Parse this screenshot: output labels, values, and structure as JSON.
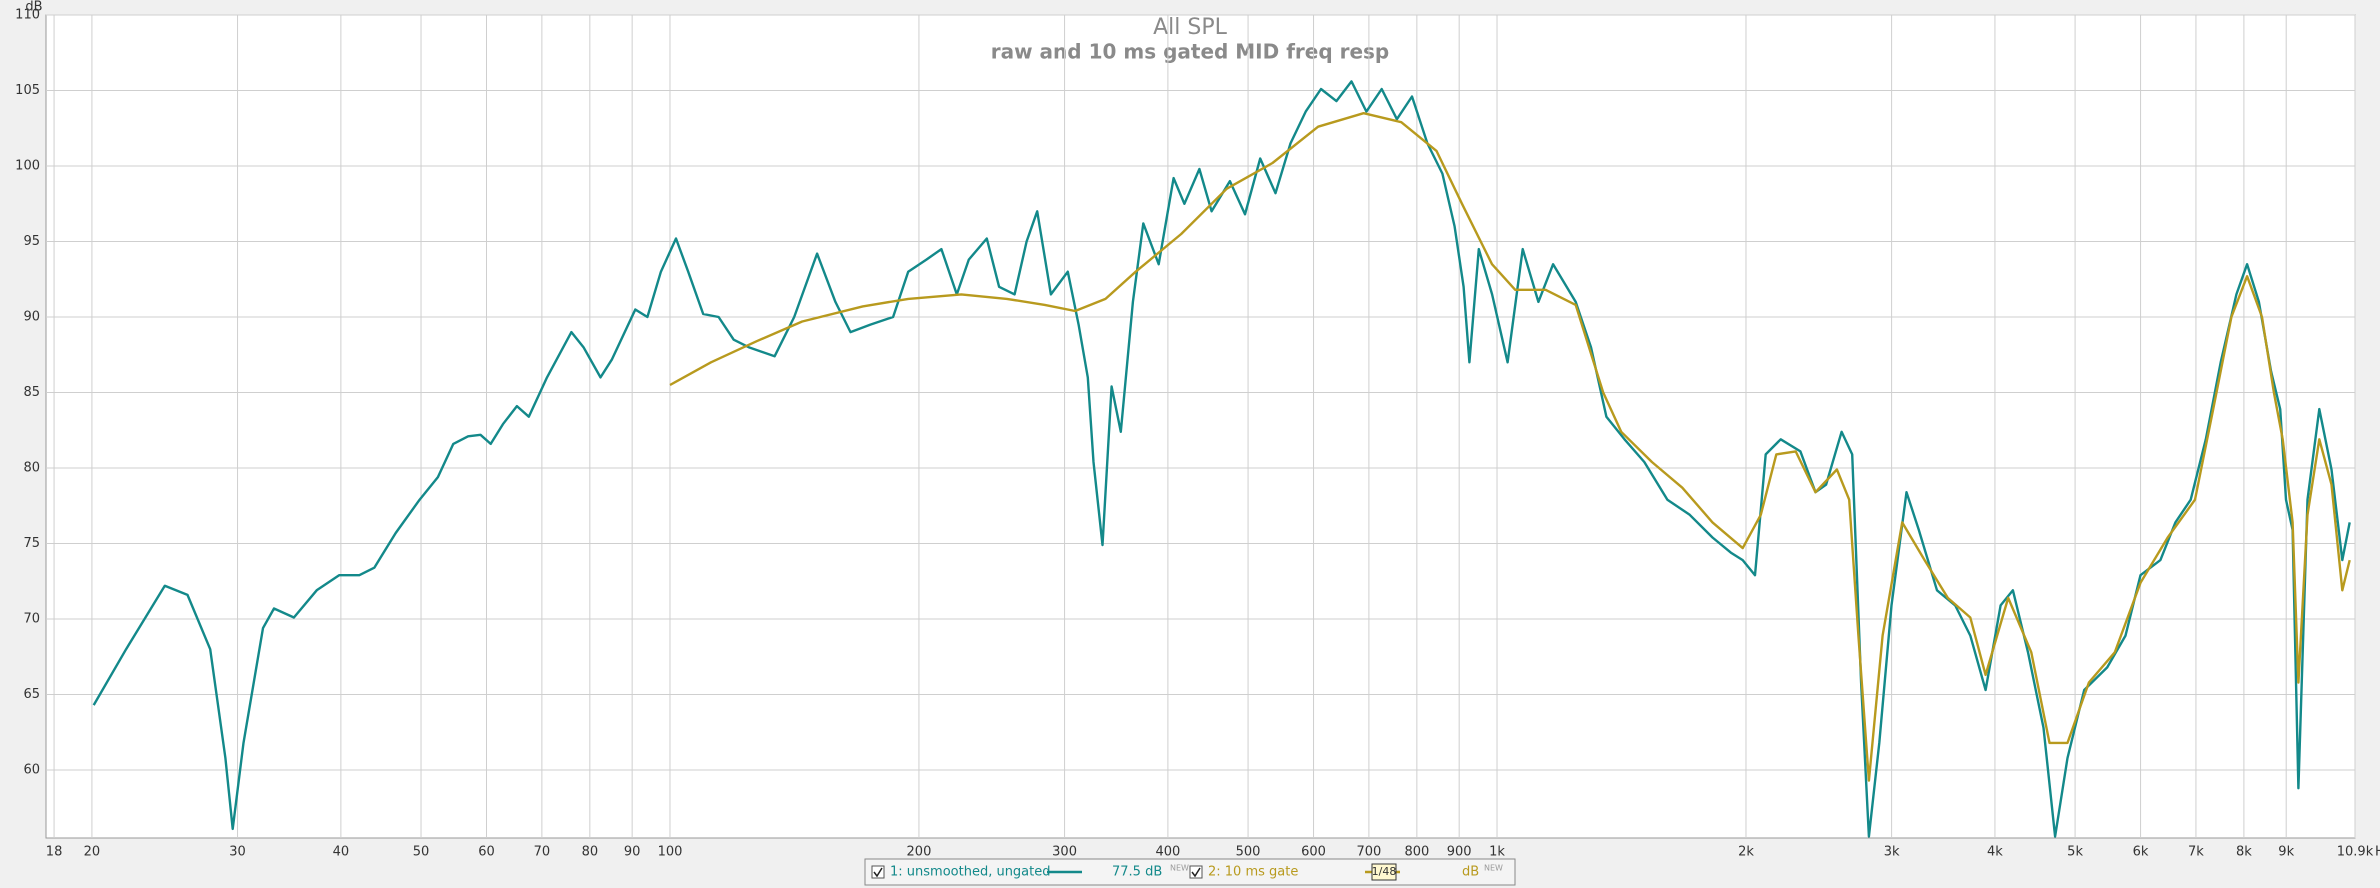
{
  "chart_data": {
    "type": "line",
    "title": "All SPL",
    "subtitle": "raw and 10 ms gated MID freq resp",
    "y_label": "dB",
    "x_unit": "Hz",
    "log_x": true,
    "grid": true,
    "xlim": [
      17.6,
      10900
    ],
    "ylim": [
      55.5,
      110
    ],
    "xticks": [
      18,
      20,
      30,
      40,
      50,
      60,
      70,
      80,
      90,
      100,
      200,
      300,
      400,
      500,
      600,
      700,
      800,
      900,
      {
        "value": 1000,
        "label": "1k"
      },
      {
        "value": 2000,
        "label": "2k"
      },
      {
        "value": 3000,
        "label": "3k"
      },
      {
        "value": 4000,
        "label": "4k"
      },
      {
        "value": 5000,
        "label": "5k"
      },
      {
        "value": 6000,
        "label": "6k"
      },
      {
        "value": 7000,
        "label": "7k"
      },
      {
        "value": 8000,
        "label": "8k"
      },
      {
        "value": 9000,
        "label": "9k"
      },
      {
        "value": 10900,
        "label": "10.9k"
      }
    ],
    "yticks": [
      60,
      65,
      70,
      75,
      80,
      85,
      90,
      95,
      100,
      105,
      110
    ],
    "series": [
      {
        "name": "1: unsmoothed, ungated",
        "color": "#13898a",
        "readout": "77.5 dB",
        "badge": "NEW",
        "x": [
          20.1,
          22.0,
          24.5,
          26.1,
          27.8,
          29.0,
          29.6,
          30.5,
          32.2,
          33.2,
          35.1,
          37.4,
          39.8,
          42.1,
          43.9,
          46.6,
          49.8,
          52.4,
          54.7,
          57.0,
          59.0,
          60.7,
          62.8,
          65.3,
          67.5,
          71.0,
          76.0,
          78.6,
          82.4,
          85.1,
          90.8,
          93.9,
          97.5,
          101.7,
          105.2,
          109.7,
          114.5,
          119.4,
          124.5,
          133.8,
          141.3,
          150.6,
          158.5,
          165.3,
          174.7,
          186.1,
          194.1,
          204.2,
          212.9,
          222.2,
          229.8,
          241.6,
          250.0,
          261.0,
          269.9,
          278.0,
          288.8,
          302.7,
          311.9,
          320.0,
          325.2,
          333.4,
          342.0,
          350.8,
          362.9,
          373.5,
          389.9,
          406.4,
          418.8,
          436.7,
          451.7,
          475.3,
          495.7,
          517.2,
          539.7,
          562.7,
          587.0,
          612.6,
          639.4,
          666.8,
          695.2,
          725.4,
          756.7,
          789.3,
          823.7,
          859.0,
          888.6,
          911.2,
          926.1,
          950.6,
          986.4,
          1030,
          1074,
          1122,
          1169,
          1245,
          1299,
          1356,
          1426,
          1507,
          1607,
          1710,
          1822,
          1917,
          1982,
          2051,
          2113,
          2203,
          2327,
          2427,
          2500,
          2610,
          2688,
          2756,
          2816,
          2899,
          2999,
          3127,
          3236,
          3404,
          3581,
          3735,
          3897,
          4064,
          4205,
          4386,
          4579,
          4730,
          4895,
          5129,
          5468,
          5754,
          5998,
          6340,
          6611,
          6899,
          7194,
          7499,
          7834,
          8072,
          8341,
          8630,
          8851,
          8995,
          9162,
          9311,
          9550,
          9870,
          10210,
          10520,
          10740
        ],
        "values": [
          64.3,
          68.0,
          72.2,
          71.6,
          68.0,
          60.8,
          56.1,
          61.8,
          69.4,
          70.7,
          70.1,
          71.9,
          72.9,
          72.9,
          73.4,
          75.7,
          77.9,
          79.4,
          81.6,
          82.1,
          82.2,
          81.6,
          82.9,
          84.1,
          83.4,
          86.0,
          89.0,
          88.0,
          86.0,
          87.2,
          90.5,
          90.0,
          93.0,
          95.2,
          93.0,
          90.2,
          90.0,
          88.5,
          88.0,
          87.4,
          90.0,
          94.2,
          91.0,
          89.0,
          89.5,
          90.0,
          93.0,
          93.8,
          94.5,
          91.5,
          93.8,
          95.2,
          92.0,
          91.5,
          95.0,
          97.0,
          91.5,
          93.0,
          89.5,
          86.0,
          80.4,
          74.9,
          85.4,
          82.4,
          91.0,
          96.2,
          93.5,
          99.2,
          97.5,
          99.8,
          97.0,
          99.0,
          96.8,
          100.5,
          98.2,
          101.5,
          103.6,
          105.1,
          104.3,
          105.6,
          103.6,
          105.1,
          103.1,
          104.6,
          101.5,
          99.5,
          96.0,
          92.0,
          87.0,
          94.5,
          91.5,
          87.0,
          94.5,
          91.0,
          93.5,
          91.0,
          88.0,
          83.4,
          81.9,
          80.4,
          77.9,
          76.9,
          75.4,
          74.4,
          73.9,
          72.9,
          80.9,
          81.9,
          81.1,
          78.4,
          78.9,
          82.4,
          80.9,
          65.8,
          55.6,
          61.8,
          70.9,
          78.4,
          75.9,
          71.9,
          70.9,
          68.9,
          65.3,
          70.9,
          71.9,
          67.8,
          62.8,
          55.6,
          60.8,
          65.3,
          66.8,
          68.9,
          72.9,
          73.9,
          76.4,
          77.9,
          81.9,
          87.0,
          91.5,
          93.5,
          91.0,
          86.4,
          83.9,
          77.9,
          75.9,
          58.8,
          77.9,
          83.9,
          79.9,
          73.9,
          76.4
        ]
      },
      {
        "name": "2: 10 ms gate",
        "color": "#b89a1e",
        "smoothing": "1/48",
        "readout": "dB",
        "badge": "NEW",
        "x": [
          100,
          112.1,
          127.3,
          144.5,
          171.0,
          194.1,
          225,
          255.5,
          283.9,
          308.9,
          336.2,
          365.7,
          415.1,
          471.3,
          535.2,
          607.6,
          689.8,
          766,
          845,
          907,
          986,
          1052,
          1145,
          1245,
          1344,
          1413,
          1539,
          1675,
          1822,
          1982,
          2084,
          2176,
          2297,
          2427,
          2576,
          2666,
          2735,
          2816,
          2926,
          3090,
          3289,
          3508,
          3735,
          3897,
          4150,
          4426,
          4656,
          4895,
          5196,
          5585,
          5998,
          6470,
          6982,
          7345,
          7727,
          8072,
          8414,
          8696,
          8913,
          9162,
          9311,
          9550,
          9870,
          10210,
          10520,
          10740
        ],
        "values": [
          85.5,
          87.0,
          88.4,
          89.7,
          90.7,
          91.2,
          91.5,
          91.2,
          90.8,
          90.4,
          91.2,
          93.0,
          95.5,
          98.5,
          100.2,
          102.6,
          103.5,
          102.9,
          101.0,
          97.5,
          93.5,
          91.8,
          91.8,
          90.8,
          85.0,
          82.4,
          80.4,
          78.7,
          76.4,
          74.7,
          76.9,
          80.9,
          81.1,
          78.4,
          79.9,
          77.9,
          68.9,
          59.3,
          68.9,
          76.4,
          73.9,
          71.4,
          70.1,
          66.3,
          71.4,
          67.8,
          61.8,
          61.8,
          65.8,
          67.8,
          72.4,
          75.4,
          77.9,
          83.9,
          90.0,
          92.7,
          90.0,
          85.0,
          81.9,
          76.4,
          65.8,
          76.9,
          81.9,
          78.9,
          71.9,
          73.9
        ]
      }
    ]
  }
}
